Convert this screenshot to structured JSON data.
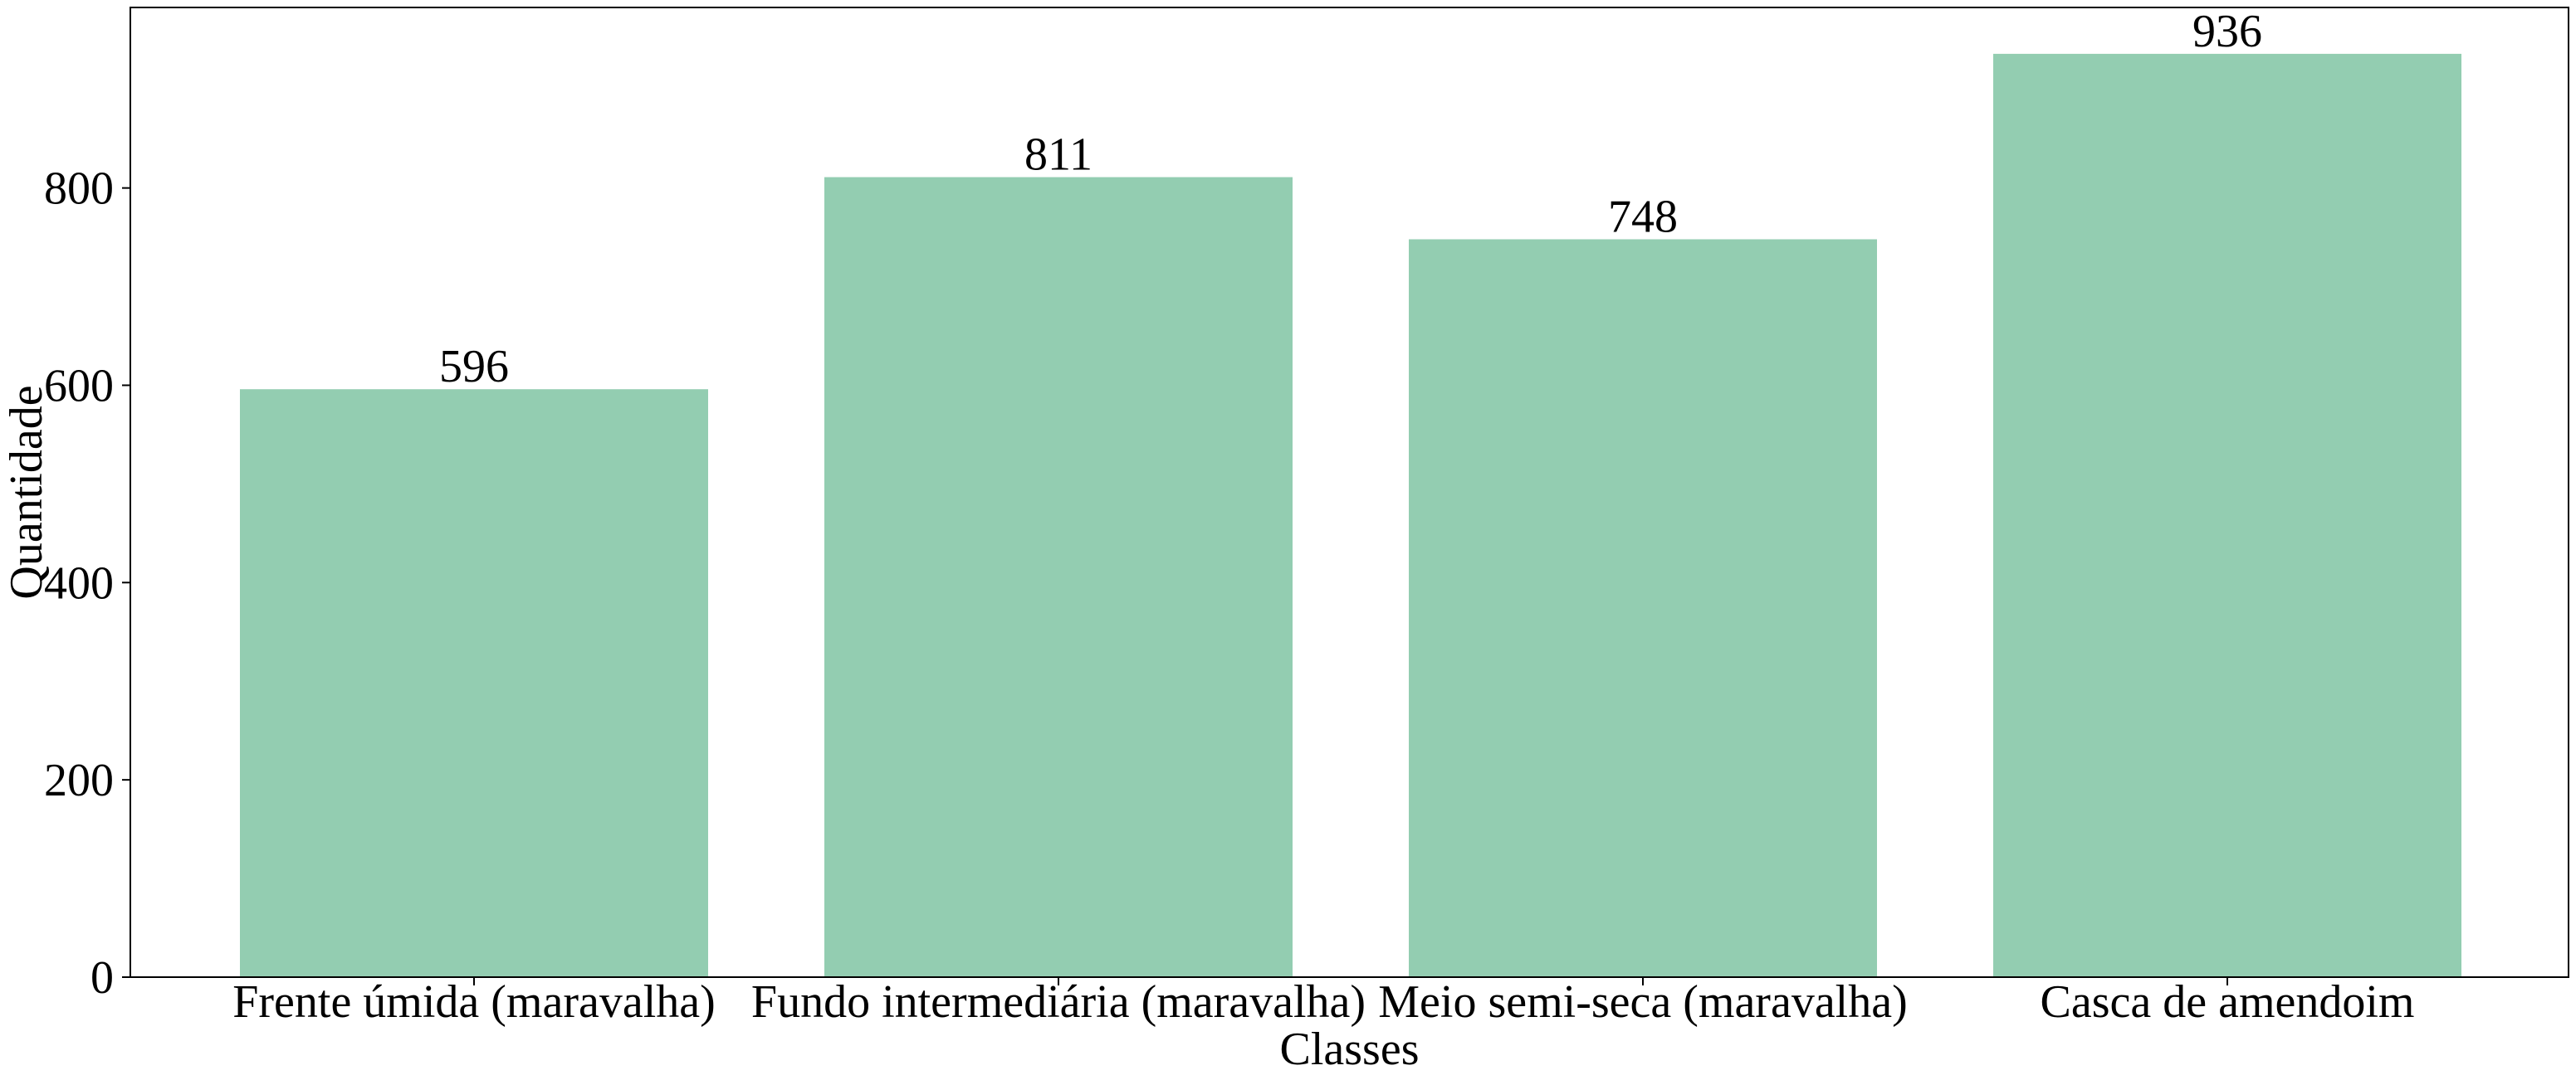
{
  "chart_data": {
    "type": "bar",
    "categories": [
      "Frente úmida (maravalha)",
      "Fundo intermediária (maravalha)",
      "Meio semi-seca (maravalha)",
      "Casca de amendoim"
    ],
    "values": [
      596,
      811,
      748,
      936
    ],
    "data_labels": [
      "596",
      "811",
      "748",
      "936"
    ],
    "xlabel": "Classes",
    "ylabel": "Quantidade",
    "ylim": [
      0,
      983
    ],
    "yticks": [
      0,
      200,
      400,
      600,
      800
    ],
    "ytick_labels": [
      "0",
      "200",
      "400",
      "600",
      "800"
    ],
    "bar_color": "#93cdb1",
    "grid": false,
    "legend": "none"
  }
}
